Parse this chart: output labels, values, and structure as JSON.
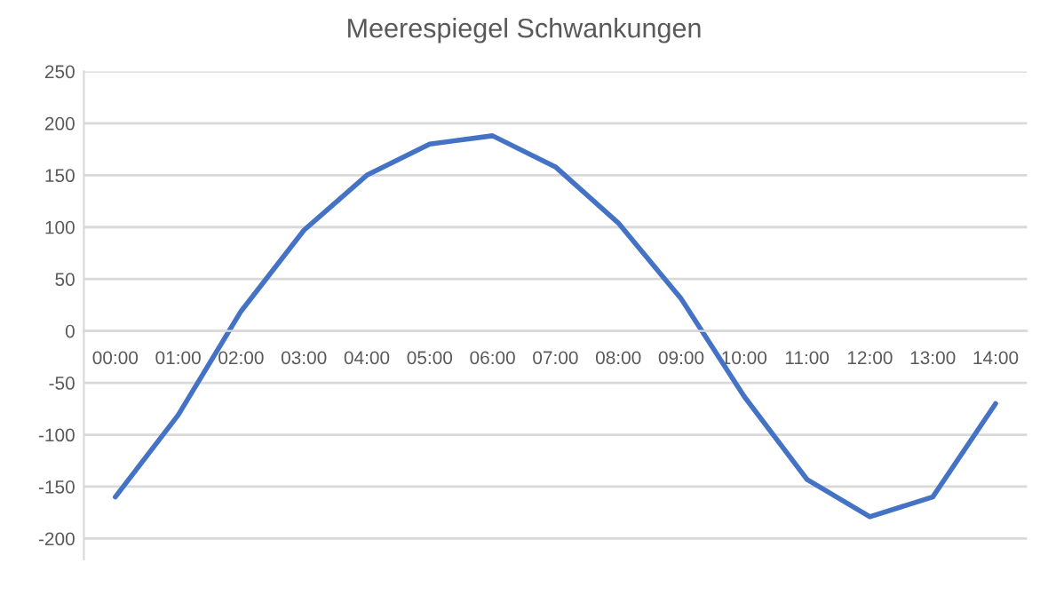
{
  "chart_data": {
    "type": "line",
    "title": "Meerespiegel Schwankungen",
    "categories": [
      "00:00",
      "01:00",
      "02:00",
      "03:00",
      "04:00",
      "05:00",
      "06:00",
      "07:00",
      "08:00",
      "09:00",
      "10:00",
      "11:00",
      "12:00",
      "13:00",
      "14:00"
    ],
    "series": [
      {
        "color": "#4472c4",
        "values": [
          -160,
          -81,
          19,
          97,
          150,
          180,
          188,
          158,
          104,
          31,
          -63,
          -143,
          -179,
          -160,
          -70
        ]
      }
    ],
    "ylim": [
      -220,
      250
    ],
    "yticks": [
      -200,
      -150,
      -100,
      -50,
      0,
      50,
      100,
      150,
      200,
      250
    ],
    "grid": "y",
    "legend": false,
    "marker": "none",
    "line_style": "solid"
  }
}
